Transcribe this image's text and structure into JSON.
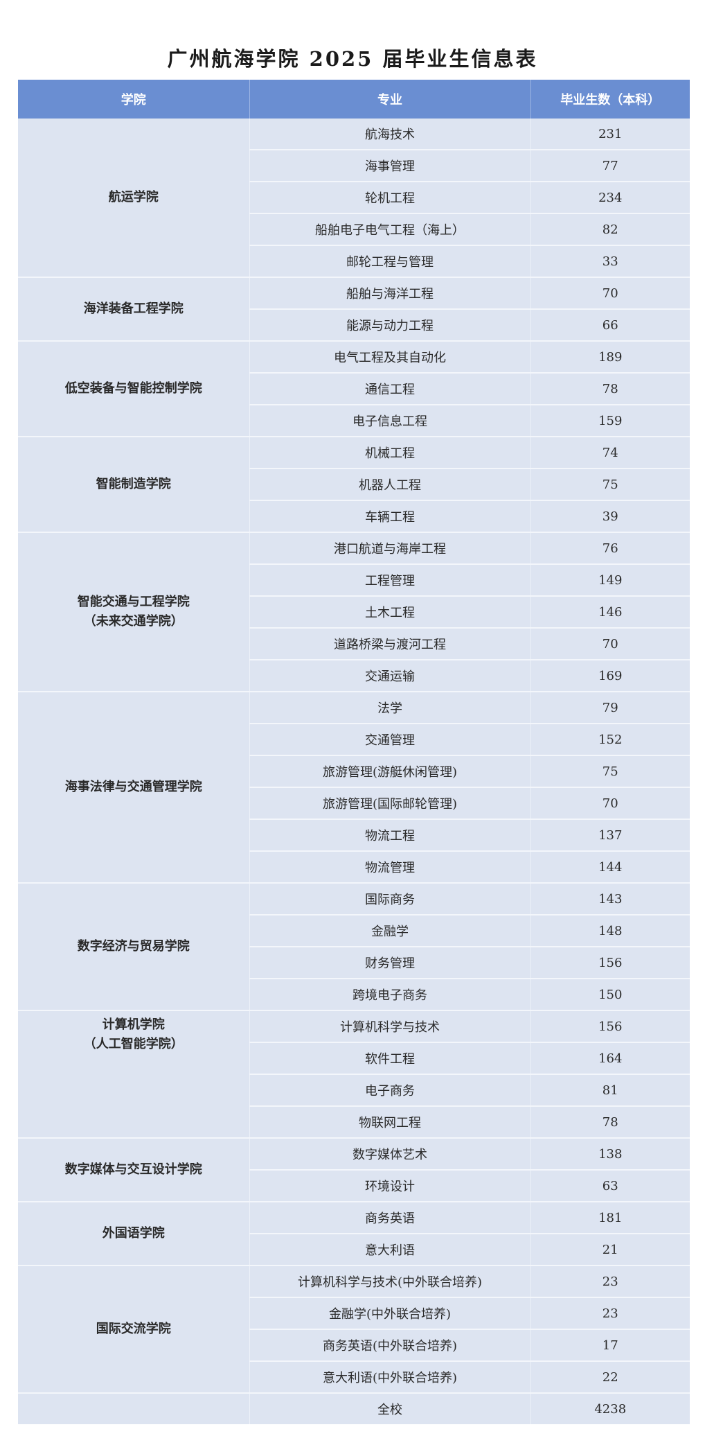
{
  "title": "广州航海学院 2025 届毕业生信息表",
  "headers": [
    "学院",
    "专业",
    "毕业生数（本科）"
  ],
  "colors": {
    "header_bg": "#6a8ed2",
    "cell_bg": "#dde4f1"
  },
  "colleges": [
    {
      "name": "航运学院",
      "majors": [
        {
          "name": "航海技术",
          "count": "231"
        },
        {
          "name": "海事管理",
          "count": "77"
        },
        {
          "name": "轮机工程",
          "count": "234"
        },
        {
          "name": "船舶电子电气工程（海上）",
          "count": "82"
        },
        {
          "name": "邮轮工程与管理",
          "count": "33"
        }
      ]
    },
    {
      "name": "海洋装备工程学院",
      "majors": [
        {
          "name": "船舶与海洋工程",
          "count": "70"
        },
        {
          "name": "能源与动力工程",
          "count": "66"
        }
      ]
    },
    {
      "name": "低空装备与智能控制学院",
      "majors": [
        {
          "name": "电气工程及其自动化",
          "count": "189"
        },
        {
          "name": "通信工程",
          "count": "78"
        },
        {
          "name": "电子信息工程",
          "count": "159"
        }
      ]
    },
    {
      "name": "智能制造学院",
      "majors": [
        {
          "name": "机械工程",
          "count": "74"
        },
        {
          "name": "机器人工程",
          "count": "75"
        },
        {
          "name": "车辆工程",
          "count": "39"
        }
      ]
    },
    {
      "name": "智能交通与工程学院",
      "subname": "（未来交通学院）",
      "majors": [
        {
          "name": "港口航道与海岸工程",
          "count": "76"
        },
        {
          "name": "工程管理",
          "count": "149"
        },
        {
          "name": "土木工程",
          "count": "146"
        },
        {
          "name": "道路桥梁与渡河工程",
          "count": "70"
        },
        {
          "name": "交通运输",
          "count": "169"
        }
      ]
    },
    {
      "name": "海事法律与交通管理学院",
      "majors": [
        {
          "name": "法学",
          "count": "79"
        },
        {
          "name": "交通管理",
          "count": "152"
        },
        {
          "name": "旅游管理(游艇休闲管理)",
          "count": "75"
        },
        {
          "name": "旅游管理(国际邮轮管理)",
          "count": "70"
        },
        {
          "name": "物流工程",
          "count": "137"
        },
        {
          "name": "物流管理",
          "count": "144"
        }
      ]
    },
    {
      "name": "数字经济与贸易学院",
      "majors": [
        {
          "name": "国际商务",
          "count": "143"
        },
        {
          "name": "金融学",
          "count": "148"
        },
        {
          "name": "财务管理",
          "count": "156"
        },
        {
          "name": "跨境电子商务",
          "count": "150"
        }
      ]
    },
    {
      "name": "计算机学院",
      "subname": "（人工智能学院）",
      "align": "top",
      "majors": [
        {
          "name": "计算机科学与技术",
          "count": "156"
        },
        {
          "name": "软件工程",
          "count": "164"
        },
        {
          "name": "电子商务",
          "count": "81"
        },
        {
          "name": "物联网工程",
          "count": "78"
        }
      ]
    },
    {
      "name": "数字媒体与交互设计学院",
      "majors": [
        {
          "name": "数字媒体艺术",
          "count": "138"
        },
        {
          "name": "环境设计",
          "count": "63"
        }
      ]
    },
    {
      "name": "外国语学院",
      "majors": [
        {
          "name": "商务英语",
          "count": "181"
        },
        {
          "name": "意大利语",
          "count": "21"
        }
      ]
    },
    {
      "name": "国际交流学院",
      "majors": [
        {
          "name": "计算机科学与技术(中外联合培养)",
          "count": "23"
        },
        {
          "name": "金融学(中外联合培养)",
          "count": "23"
        },
        {
          "name": "商务英语(中外联合培养)",
          "count": "17"
        },
        {
          "name": "意大利语(中外联合培养)",
          "count": "22"
        }
      ]
    }
  ],
  "total": {
    "label": "全校",
    "count": "4238"
  }
}
